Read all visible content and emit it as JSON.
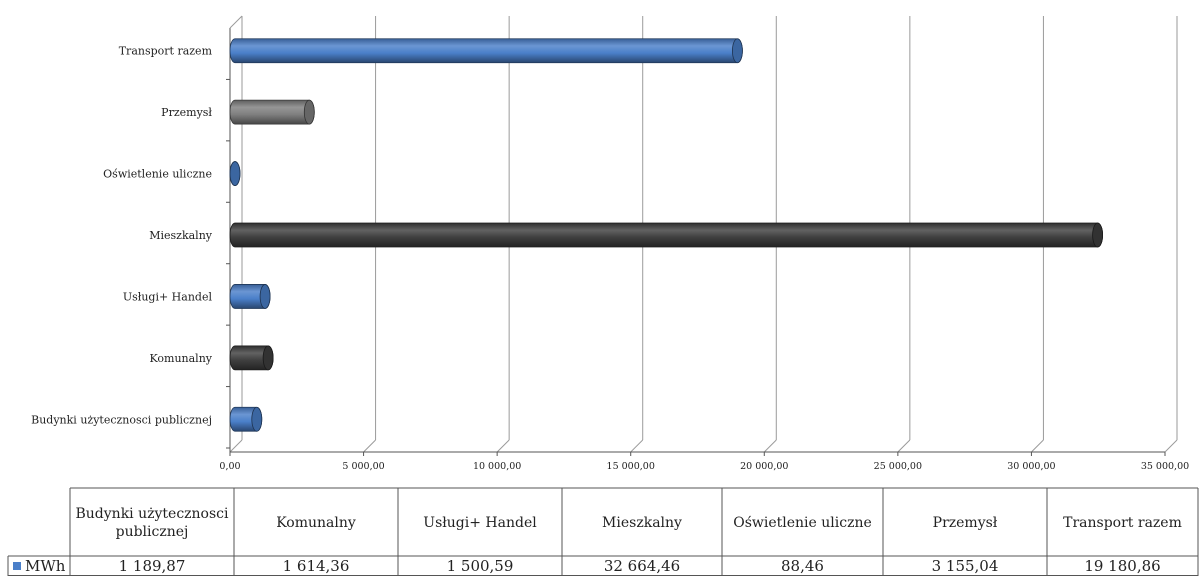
{
  "chart_data": {
    "type": "bar",
    "orientation": "horizontal",
    "three_d": true,
    "categories": [
      "Budynki użytecznosci publicznej",
      "Komunalny",
      "Usługi+ Handel",
      "Mieszkalny",
      "Oświetlenie uliczne",
      "Przemysł",
      "Transport razem"
    ],
    "table_headers": [
      "Budynki użytecznosci publicznej",
      "Komunalny",
      "Usługi+ Handel",
      "Mieszkalny",
      "Oświetlenie uliczne",
      "Przemysł",
      "Transport razem"
    ],
    "series": [
      {
        "name": "MWh",
        "values": [
          1189.87,
          1614.36,
          1500.59,
          32664.46,
          88.46,
          3155.04,
          19180.86
        ],
        "value_labels": [
          "1 189,87",
          "1 614,36",
          "1 500,59",
          "32 664,46",
          "88,46",
          "3 155,04",
          "19 180,86"
        ]
      }
    ],
    "bar_colors": [
      "#4a7fc9",
      "#3f3f3f",
      "#4a7fc9",
      "#3f3f3f",
      "#4a7fc9",
      "#7f7f7f",
      "#4a7fc9"
    ],
    "x_ticks": [
      "0,00",
      "5 000,00",
      "10 000,00",
      "15 000,00",
      "20 000,00",
      "25 000,00",
      "30 000,00",
      "35 000,00"
    ],
    "xlim": [
      0,
      35000
    ],
    "grid": true,
    "legend_color": "#4a7fc9",
    "data_table": true
  }
}
